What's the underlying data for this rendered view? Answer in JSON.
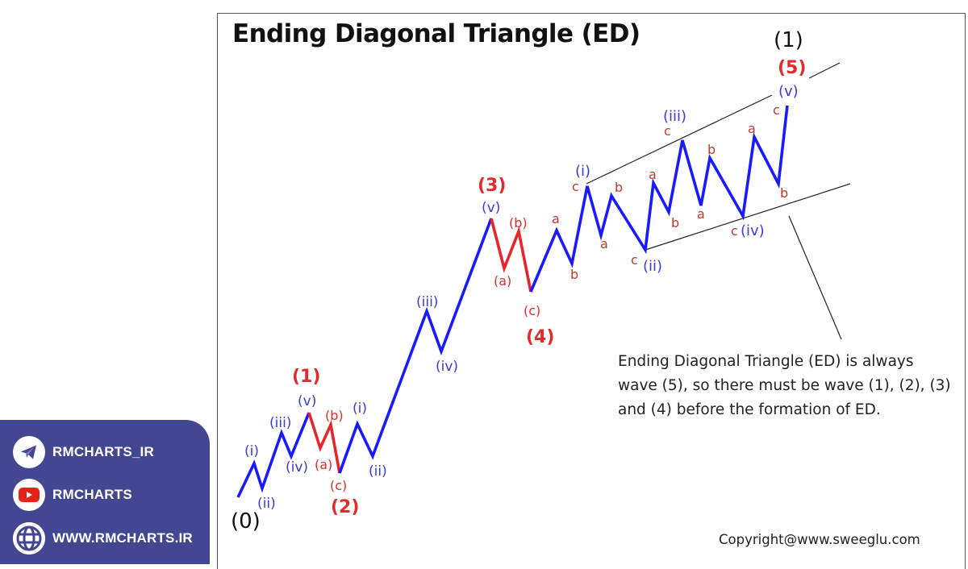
{
  "diagram": {
    "title": "Ending Diagonal Triangle (ED)",
    "note": "Ending Diagonal Triangle (ED) is always wave (5), so there must be wave (1), (2), (3) and (4) before the formation of ED.",
    "copyright": "Copyright@www.sweeglu.com",
    "colors": {
      "impulse_line": "#1a1aff",
      "corrective_line": "#e8262a",
      "minor_label": "#3a3adf",
      "major_label": "#e32b2b",
      "abc_label": "#c0392b",
      "degree_label": "#111111",
      "trendline": "#222222"
    },
    "labels": {
      "degree_start": "(0)",
      "degree_end": "(1)",
      "wave1": "(1)",
      "wave2": "(2)",
      "wave3": "(3)",
      "wave4": "(4)",
      "wave5": "(5)"
    }
  },
  "chart_data": {
    "type": "line",
    "title": "Ending Diagonal Triangle (ED)",
    "xlabel": "",
    "ylabel": "",
    "grid": false,
    "description": "Elliott wave schematic: impulse waves (1)-(4) followed by an ending diagonal wave (5) bounded by converging-up trendlines, each subwave (i)-(v) subdivided into a-b-c.",
    "series": [
      {
        "name": "wave (1) impulse",
        "color": "#1a1aff",
        "points": [
          [
            295,
            617
          ],
          [
            315,
            575
          ],
          [
            325,
            606
          ],
          [
            349,
            537
          ],
          [
            361,
            566
          ],
          [
            383,
            512
          ]
        ],
        "labels": [
          "(0)",
          "(i)",
          "(ii)",
          "(iii)",
          "(iv)",
          "(v)"
        ]
      },
      {
        "name": "wave (2) correction",
        "color": "#e8262a",
        "points": [
          [
            383,
            512
          ],
          [
            397,
            556
          ],
          [
            410,
            527
          ],
          [
            421,
            587
          ]
        ],
        "labels": [
          "(v)",
          "(a)",
          "(b)",
          "(c)"
        ]
      },
      {
        "name": "wave (3) impulse",
        "color": "#1a1aff",
        "points": [
          [
            421,
            587
          ],
          [
            443,
            526
          ],
          [
            462,
            566
          ],
          [
            529,
            386
          ],
          [
            547,
            436
          ],
          [
            609,
            271
          ]
        ],
        "labels": [
          "(c)",
          "(i)",
          "(ii)",
          "(iii)",
          "(iv)",
          "(v)"
        ]
      },
      {
        "name": "wave (4) correction",
        "color": "#e8262a",
        "points": [
          [
            609,
            271
          ],
          [
            625,
            333
          ],
          [
            643,
            287
          ],
          [
            658,
            362
          ]
        ],
        "labels": [
          "(v)",
          "(a)",
          "(b)",
          "(c)"
        ]
      },
      {
        "name": "wave (5) ending diagonal",
        "color": "#1a1aff",
        "points": [
          [
            658,
            362
          ],
          [
            690,
            286
          ],
          [
            709,
            327
          ],
          [
            728,
            231
          ],
          [
            745,
            292
          ],
          [
            758,
            243
          ],
          [
            800,
            310
          ],
          [
            810,
            227
          ],
          [
            829,
            263
          ],
          [
            846,
            174
          ],
          [
            869,
            255
          ],
          [
            880,
            196
          ],
          [
            921,
            268
          ],
          [
            935,
            170
          ],
          [
            965,
            228
          ],
          [
            976,
            131
          ]
        ],
        "labels": [
          "(c)",
          "a",
          "b",
          "c (i)",
          "a",
          "b",
          "c (ii)",
          "a",
          "b",
          "c (iii)",
          "a",
          "b",
          "c (iv)",
          "a",
          "b",
          "c (v)"
        ]
      }
    ],
    "trendlines": [
      {
        "name": "upper",
        "from": [
          727,
          228
        ],
        "to": [
          957,
          118
        ]
      },
      {
        "name": "upper-extension",
        "from": [
          1003,
          97
        ],
        "to": [
          1041,
          78
        ]
      },
      {
        "name": "lower",
        "from": [
          800,
          310
        ],
        "to": [
          1054,
          228
        ]
      },
      {
        "name": "note-pointer",
        "from": [
          978,
          268
        ],
        "to": [
          1043,
          421
        ]
      }
    ]
  },
  "social": {
    "items": [
      {
        "icon": "telegram-icon",
        "label": "RMCHARTS_IR"
      },
      {
        "icon": "youtube-icon",
        "label": "RMCHARTS"
      },
      {
        "icon": "globe-icon",
        "label": "WWW.RMCHARTS.IR"
      }
    ],
    "colors": {
      "panel": "#434690",
      "youtube": "#e62117",
      "icon_fg": "#434690"
    }
  }
}
